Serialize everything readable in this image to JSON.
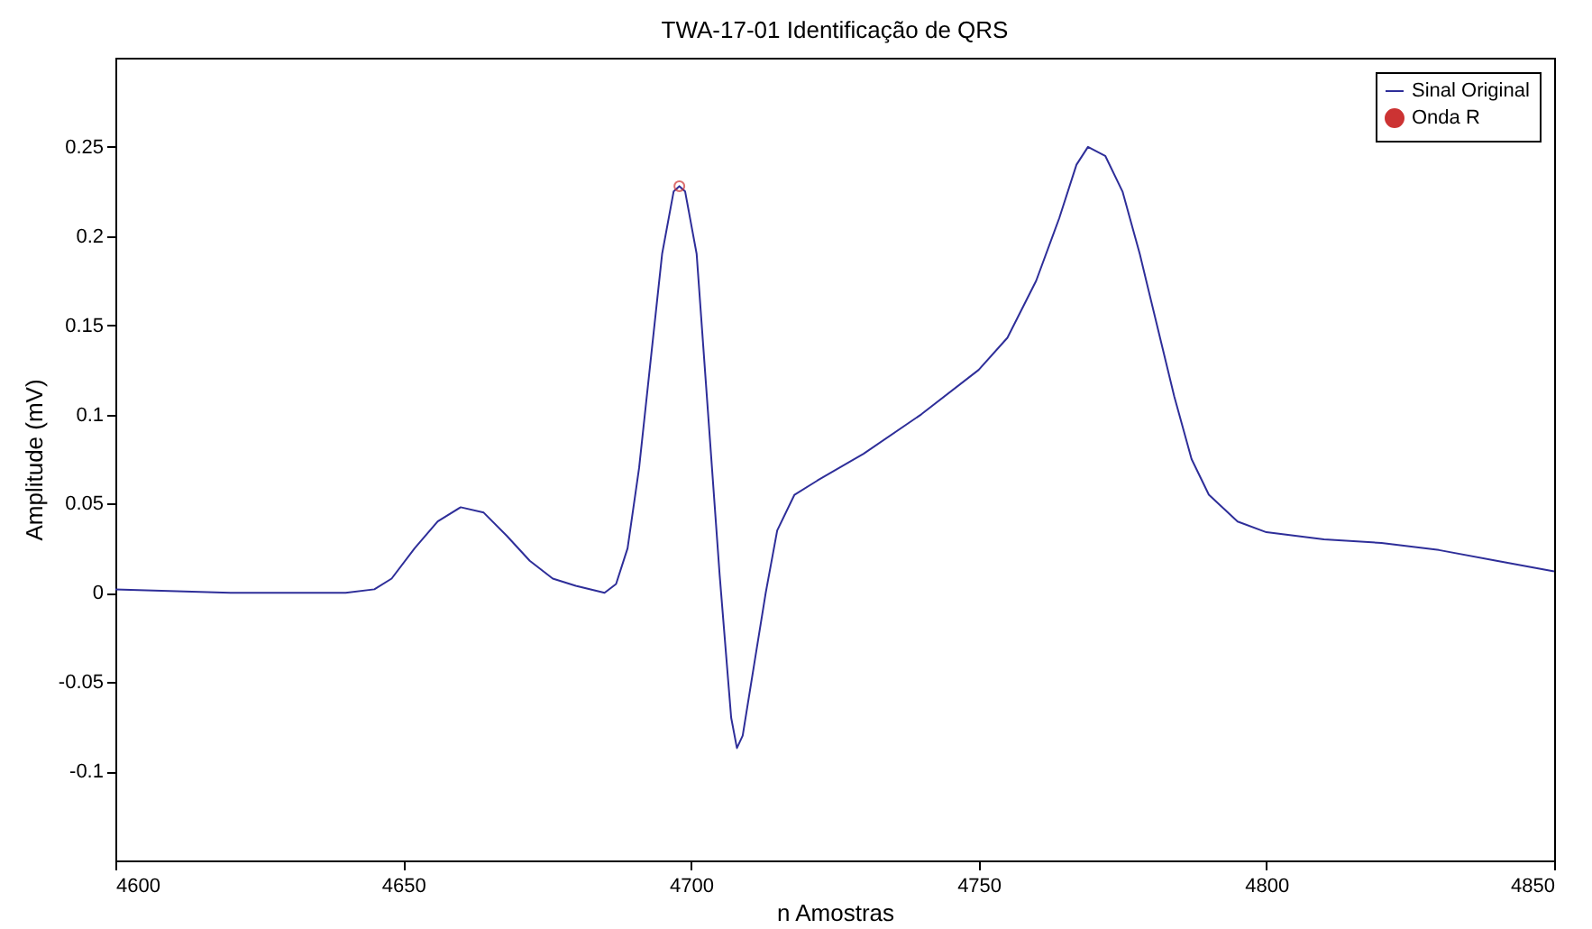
{
  "chart_data": {
    "type": "line",
    "title": "TWA-17-01 Identificação de QRS",
    "xlabel": "n Amostras",
    "ylabel": "Amplitude (mV)",
    "xlim": [
      4600,
      4850
    ],
    "xticks": [
      4600,
      4650,
      4700,
      4750,
      4800,
      4850
    ],
    "ylim": [
      -0.15,
      0.3
    ],
    "yticks": [
      -0.1,
      -0.05,
      0,
      0.05,
      0.1,
      0.15,
      0.2,
      0.25
    ],
    "grid": false,
    "legend": "top right",
    "series": [
      {
        "name": "Sinal Original",
        "color": "#2e2e99",
        "line_style": "solid",
        "x": [
          4600,
          4620,
          4640,
          4645,
          4648,
          4652,
          4656,
          4660,
          4664,
          4668,
          4672,
          4676,
          4680,
          4685,
          4687,
          4689,
          4691,
          4693,
          4695,
          4697,
          4698,
          4699,
          4701,
          4703,
          4705,
          4707,
          4708,
          4709,
          4711,
          4713,
          4715,
          4718,
          4722,
          4730,
          4740,
          4750,
          4755,
          4760,
          4764,
          4767,
          4769,
          4772,
          4775,
          4778,
          4781,
          4784,
          4787,
          4790,
          4795,
          4800,
          4810,
          4820,
          4830,
          4840,
          4850
        ],
        "values": [
          0.002,
          0,
          0,
          0.002,
          0.008,
          0.025,
          0.04,
          0.048,
          0.045,
          0.032,
          0.018,
          0.008,
          0.004,
          0,
          0.005,
          0.025,
          0.07,
          0.13,
          0.19,
          0.225,
          0.228,
          0.225,
          0.19,
          0.1,
          0.01,
          -0.07,
          -0.087,
          -0.08,
          -0.04,
          0,
          0.035,
          0.055,
          0.063,
          0.078,
          0.1,
          0.125,
          0.143,
          0.175,
          0.21,
          0.24,
          0.25,
          0.245,
          0.225,
          0.19,
          0.15,
          0.11,
          0.075,
          0.055,
          0.04,
          0.034,
          0.03,
          0.028,
          0.024,
          0.018,
          0.012
        ]
      },
      {
        "name": "Onda R",
        "type": "scatter",
        "marker": "circle",
        "color": "#cc3333",
        "x": [
          4698
        ],
        "values": [
          0.228
        ]
      }
    ]
  }
}
